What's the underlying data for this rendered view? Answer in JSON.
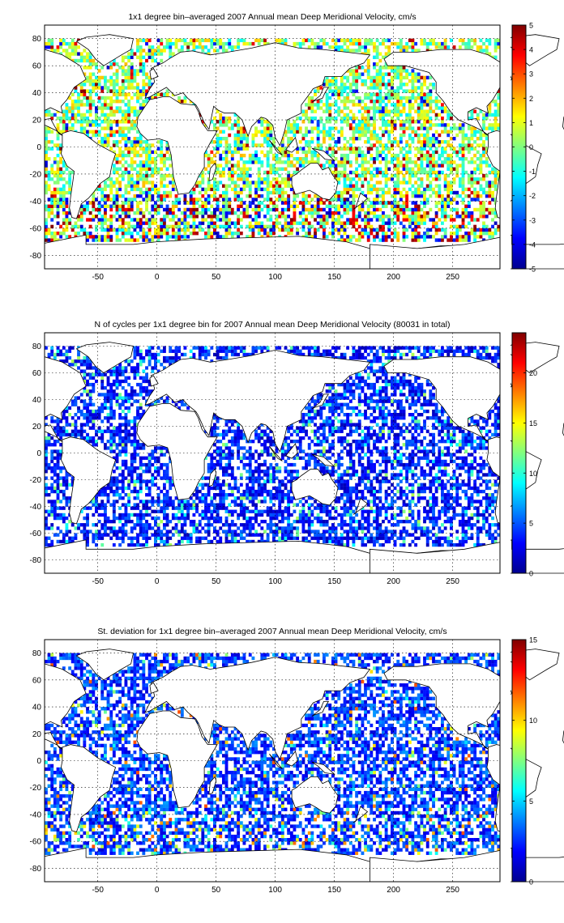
{
  "chart_data": [
    {
      "type": "heatmap",
      "title": "1x1 degree bin–averaged 2007 Annual mean Deep Meridional Velocity, cm/s",
      "xlabel": "",
      "ylabel": "",
      "xlim": [
        -95,
        290
      ],
      "ylim": [
        -90,
        90
      ],
      "xticks": [
        -50,
        0,
        50,
        100,
        150,
        200,
        250
      ],
      "yticks": [
        -80,
        -60,
        -40,
        -20,
        0,
        20,
        40,
        60,
        80
      ],
      "grid": true,
      "colormap": "jet",
      "colorbar": {
        "min": -5,
        "max": 5,
        "ticks": [
          -5,
          -4,
          -3,
          -2,
          -1,
          0,
          1,
          2,
          3,
          4,
          5
        ],
        "placement": "right"
      }
    },
    {
      "type": "heatmap",
      "title": "N of cycles per 1x1 degree bin for 2007 Annual mean Deep Meridional Velocity (80031 in total)",
      "xlabel": "",
      "ylabel": "",
      "xlim": [
        -95,
        290
      ],
      "ylim": [
        -90,
        90
      ],
      "xticks": [
        -50,
        0,
        50,
        100,
        150,
        200,
        250
      ],
      "yticks": [
        -80,
        -60,
        -40,
        -20,
        0,
        20,
        40,
        60,
        80
      ],
      "grid": true,
      "colormap": "jet",
      "colorbar": {
        "min": 0,
        "max": 24,
        "ticks": [
          0,
          5,
          10,
          15,
          20
        ],
        "placement": "right"
      }
    },
    {
      "type": "heatmap",
      "title": "St. deviation for 1x1 degree bin–averaged 2007 Annual mean Deep Meridional Velocity, cm/s",
      "xlabel": "",
      "ylabel": "",
      "xlim": [
        -95,
        290
      ],
      "ylim": [
        -90,
        90
      ],
      "xticks": [
        -50,
        0,
        50,
        100,
        150,
        200,
        250
      ],
      "yticks": [
        -80,
        -60,
        -40,
        -20,
        0,
        20,
        40,
        60,
        80
      ],
      "grid": true,
      "colormap": "jet",
      "colorbar": {
        "min": 0,
        "max": 15,
        "ticks": [
          0,
          5,
          10,
          15
        ],
        "placement": "right"
      }
    }
  ]
}
